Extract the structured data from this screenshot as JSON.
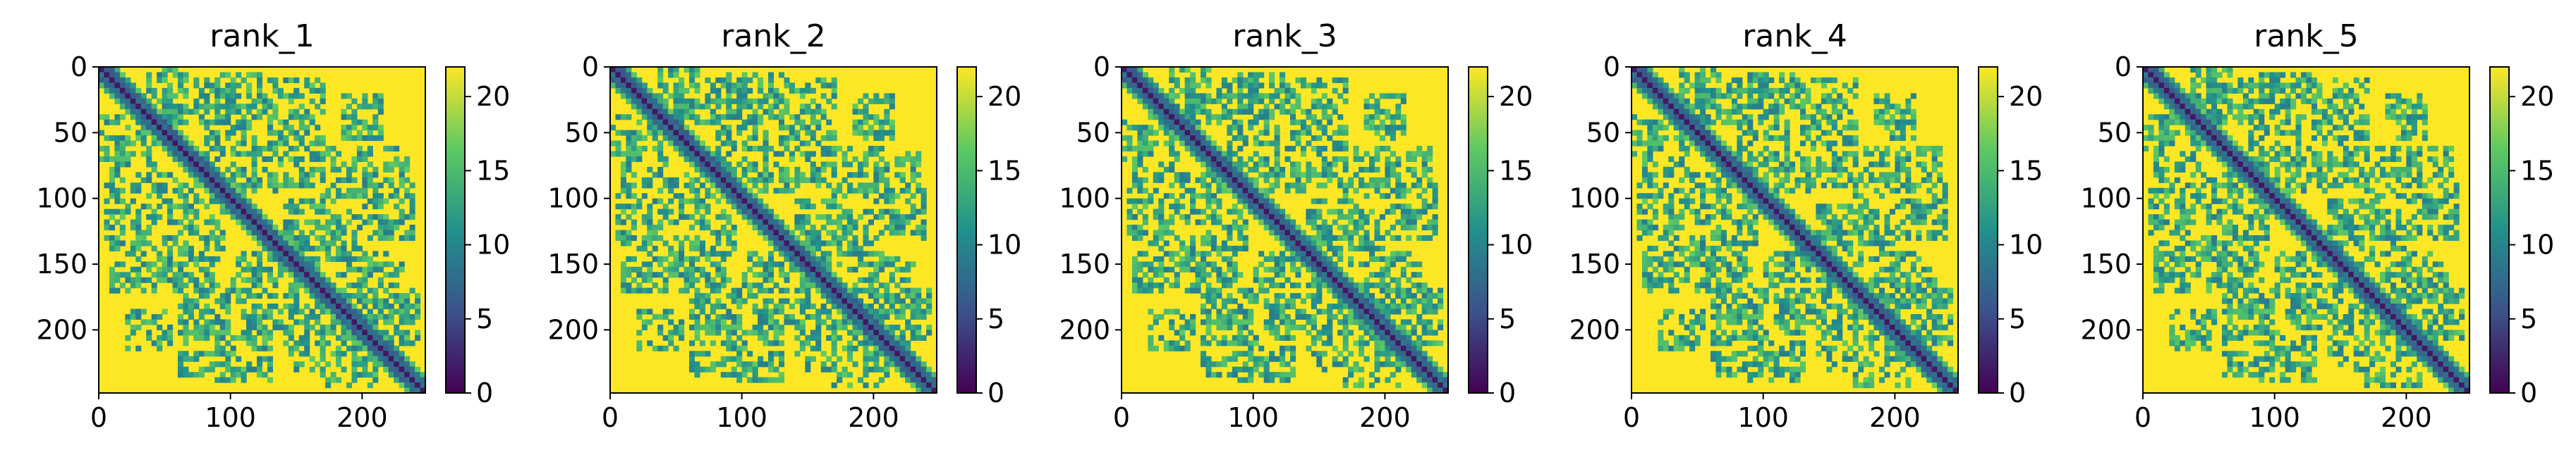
{
  "chart_data": [
    {
      "type": "heatmap",
      "title": "rank_1",
      "x_ticks": [
        0,
        100,
        200
      ],
      "y_ticks": [
        0,
        50,
        100,
        150,
        200
      ],
      "xlim": [
        0,
        248
      ],
      "ylim": [
        248,
        0
      ],
      "colorbar": {
        "ticks": [
          0,
          5,
          10,
          15,
          20
        ],
        "range": [
          0,
          22
        ],
        "colormap": "viridis"
      },
      "background_value": 22
    },
    {
      "type": "heatmap",
      "title": "rank_2",
      "x_ticks": [
        0,
        100,
        200
      ],
      "y_ticks": [
        0,
        50,
        100,
        150,
        200
      ],
      "xlim": [
        0,
        248
      ],
      "ylim": [
        248,
        0
      ],
      "colorbar": {
        "ticks": [
          0,
          5,
          10,
          15,
          20
        ],
        "range": [
          0,
          22
        ],
        "colormap": "viridis"
      },
      "background_value": 22
    },
    {
      "type": "heatmap",
      "title": "rank_3",
      "x_ticks": [
        0,
        100,
        200
      ],
      "y_ticks": [
        0,
        50,
        100,
        150,
        200
      ],
      "xlim": [
        0,
        248
      ],
      "ylim": [
        248,
        0
      ],
      "colorbar": {
        "ticks": [
          0,
          5,
          10,
          15,
          20
        ],
        "range": [
          0,
          22
        ],
        "colormap": "viridis"
      },
      "background_value": 22
    },
    {
      "type": "heatmap",
      "title": "rank_4",
      "x_ticks": [
        0,
        100,
        200
      ],
      "y_ticks": [
        0,
        50,
        100,
        150,
        200
      ],
      "xlim": [
        0,
        248
      ],
      "ylim": [
        248,
        0
      ],
      "colorbar": {
        "ticks": [
          0,
          5,
          10,
          15,
          20
        ],
        "range": [
          0,
          22
        ],
        "colormap": "viridis"
      },
      "background_value": 22
    },
    {
      "type": "heatmap",
      "title": "rank_5",
      "x_ticks": [
        0,
        100,
        200
      ],
      "y_ticks": [
        0,
        50,
        100,
        150,
        200
      ],
      "xlim": [
        0,
        248
      ],
      "ylim": [
        248,
        0
      ],
      "colorbar": {
        "ticks": [
          0,
          5,
          10,
          15,
          20
        ],
        "range": [
          0,
          22
        ],
        "colormap": "viridis"
      },
      "background_value": 22
    }
  ],
  "colors": {
    "viridis_0": "#440154",
    "viridis_25": "#3b528b",
    "viridis_50": "#21918c",
    "viridis_75": "#5ec962",
    "viridis_100": "#fde725",
    "axis": "#000000",
    "background": "#ffffff"
  }
}
